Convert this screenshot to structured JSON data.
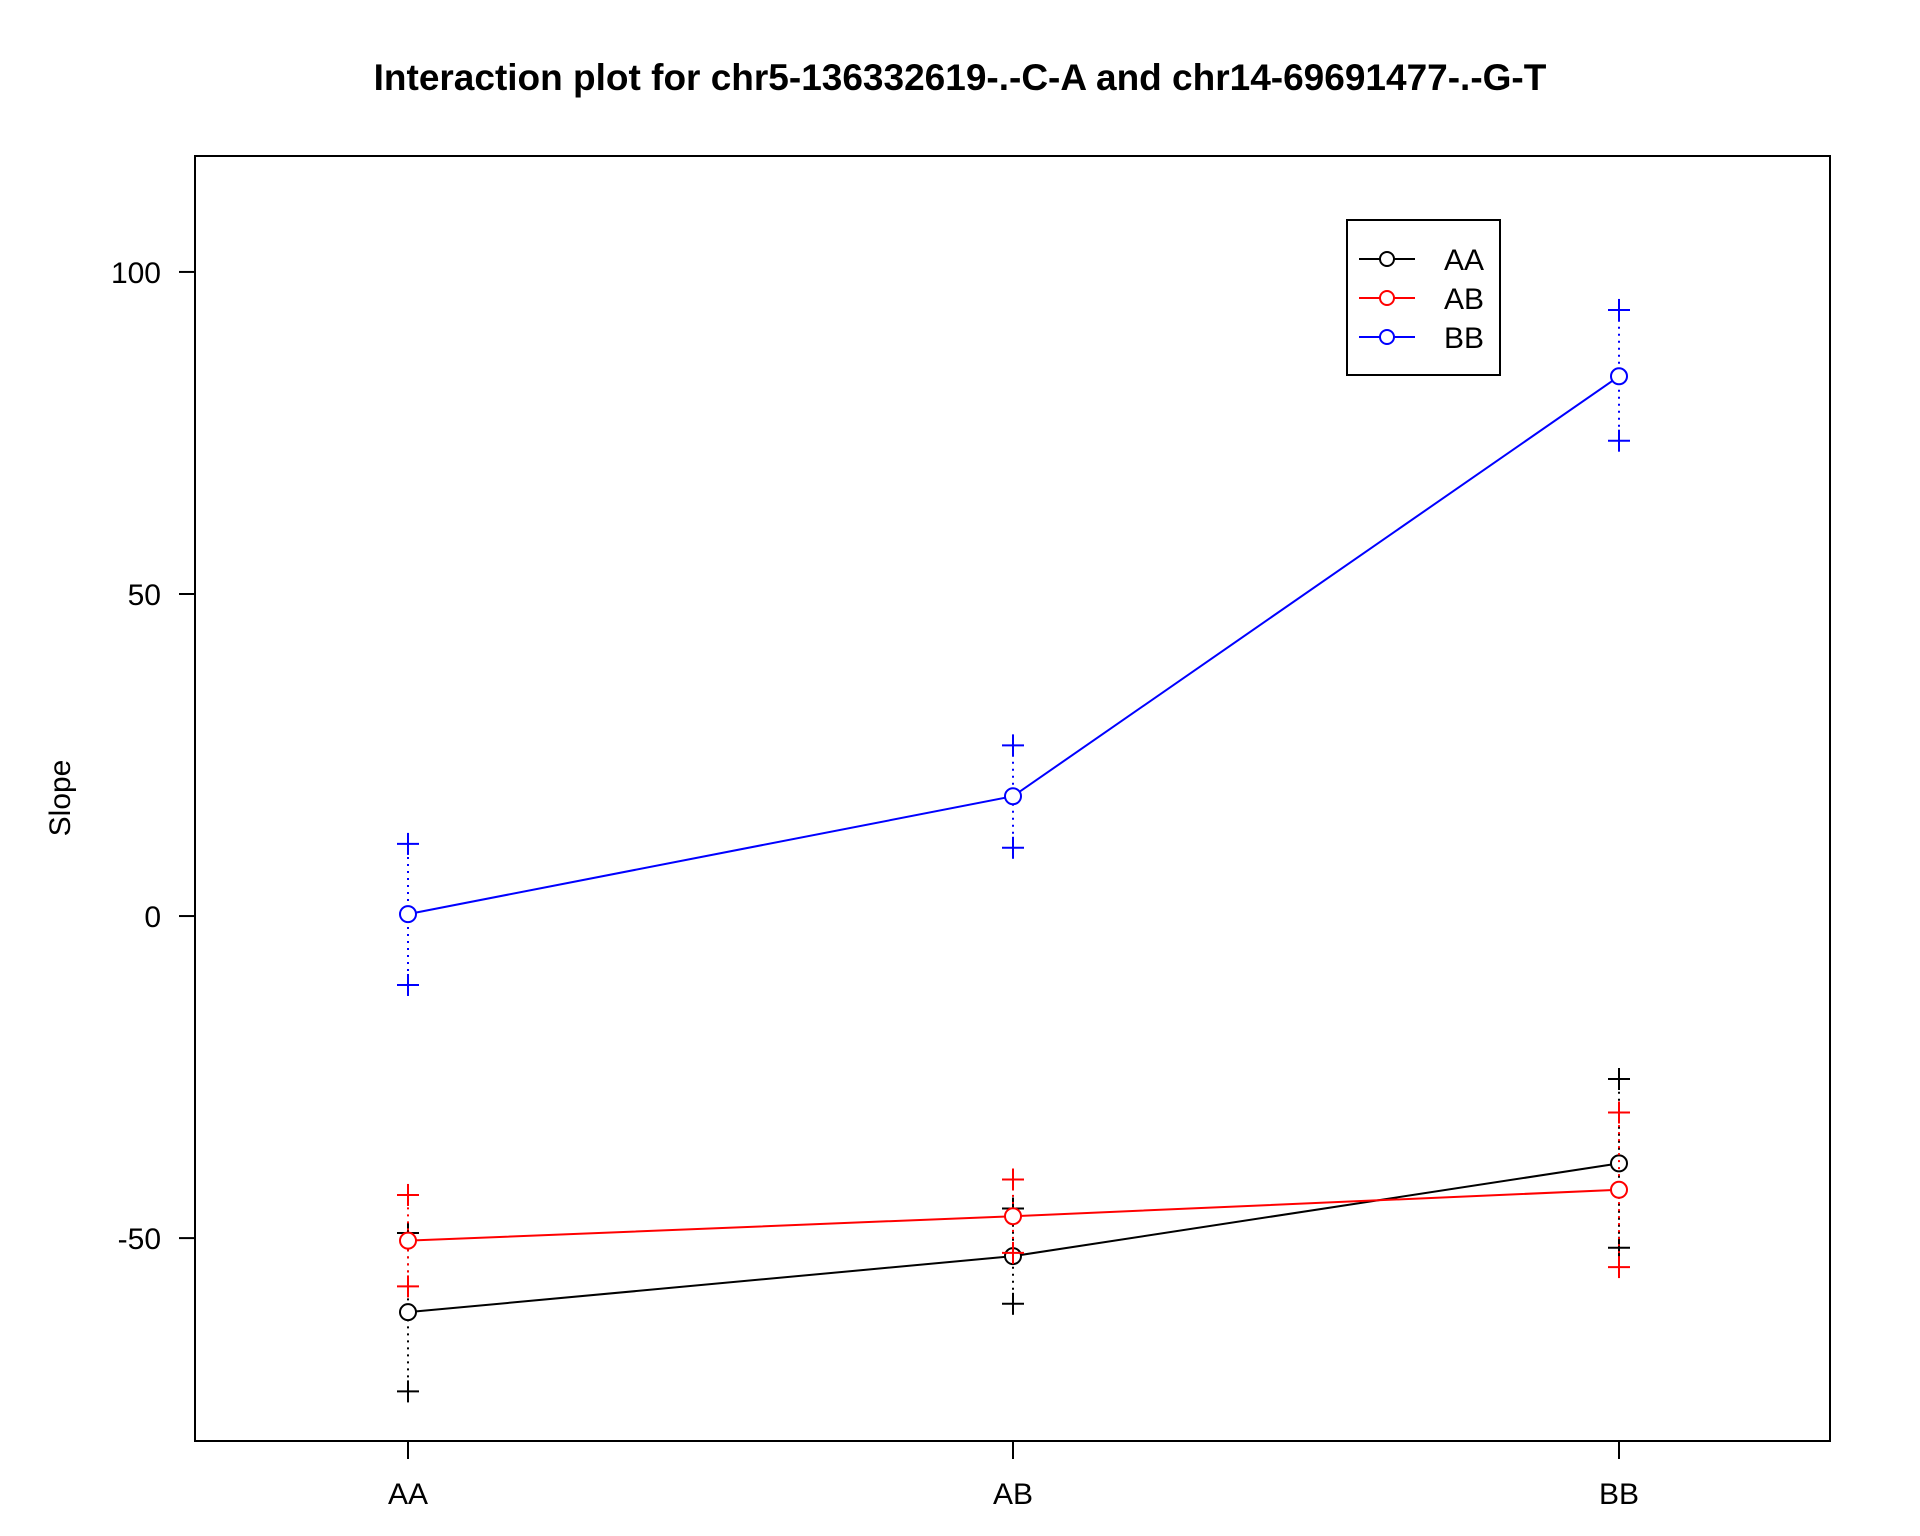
{
  "chart_data": {
    "type": "line",
    "title": "Interaction plot for chr5-136332619-.-C-A and chr14-69691477-.-G-T",
    "xlabel": "",
    "ylabel": "Slope",
    "categories": [
      "AA",
      "AB",
      "BB"
    ],
    "ylim": [
      -81.5,
      118
    ],
    "yticks": [
      -50,
      0,
      50,
      100
    ],
    "legend_position": "top-right",
    "grid": false,
    "series": [
      {
        "name": "AA",
        "color": "#000000",
        "values": [
          -61.5,
          -52.8,
          -38.4
        ],
        "lower": [
          -73.8,
          -60.2,
          -51.5
        ],
        "upper": [
          -49.2,
          -45.4,
          -25.3
        ]
      },
      {
        "name": "AB",
        "color": "#ff0000",
        "values": [
          -50.4,
          -46.6,
          -42.5
        ],
        "lower": [
          -57.5,
          -52.3,
          -54.5
        ],
        "upper": [
          -43.3,
          -40.9,
          -30.5
        ]
      },
      {
        "name": "BB",
        "color": "#0000ff",
        "values": [
          0.3,
          18.6,
          83.8
        ],
        "lower": [
          -10.7,
          10.6,
          73.8
        ],
        "upper": [
          11.2,
          26.5,
          94.1
        ]
      }
    ]
  }
}
